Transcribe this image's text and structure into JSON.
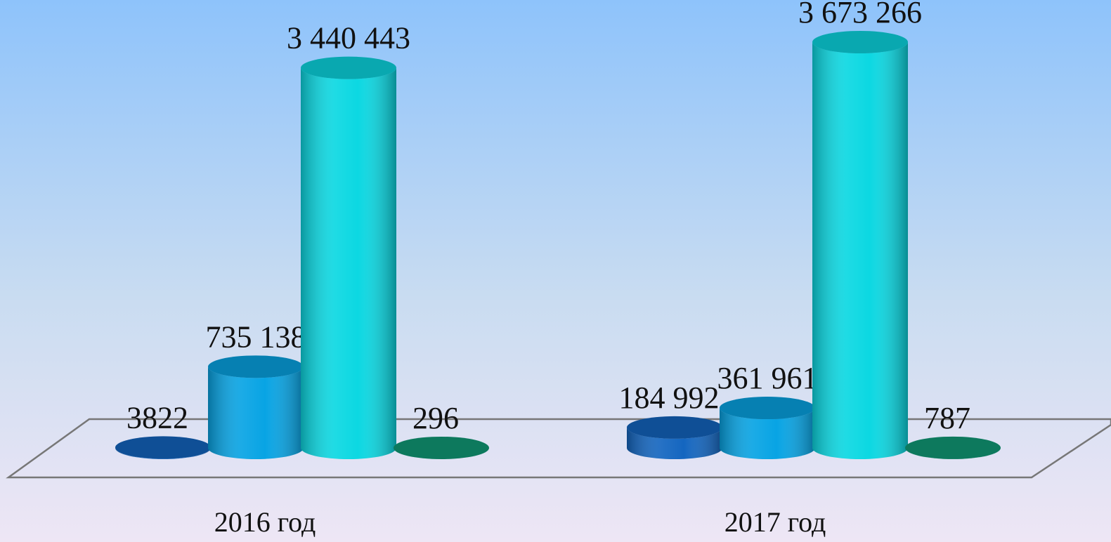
{
  "chart_data": {
    "type": "cylinder",
    "categories": [
      "2016 год",
      "2017 год"
    ],
    "series": [
      {
        "color": "#1466c0",
        "values": [
          3822,
          184992
        ],
        "value_labels": [
          "3822",
          "184 992"
        ]
      },
      {
        "color": "#08a4e4",
        "values": [
          735138,
          361961
        ],
        "value_labels": [
          "735 138",
          "361 961"
        ]
      },
      {
        "color": "#0cd8e2",
        "values": [
          3440443,
          3673266
        ],
        "value_labels": [
          "3 440 443",
          "3 673 266"
        ]
      },
      {
        "color": "#119c78",
        "values": [
          296,
          787
        ]
      }
    ]
  }
}
